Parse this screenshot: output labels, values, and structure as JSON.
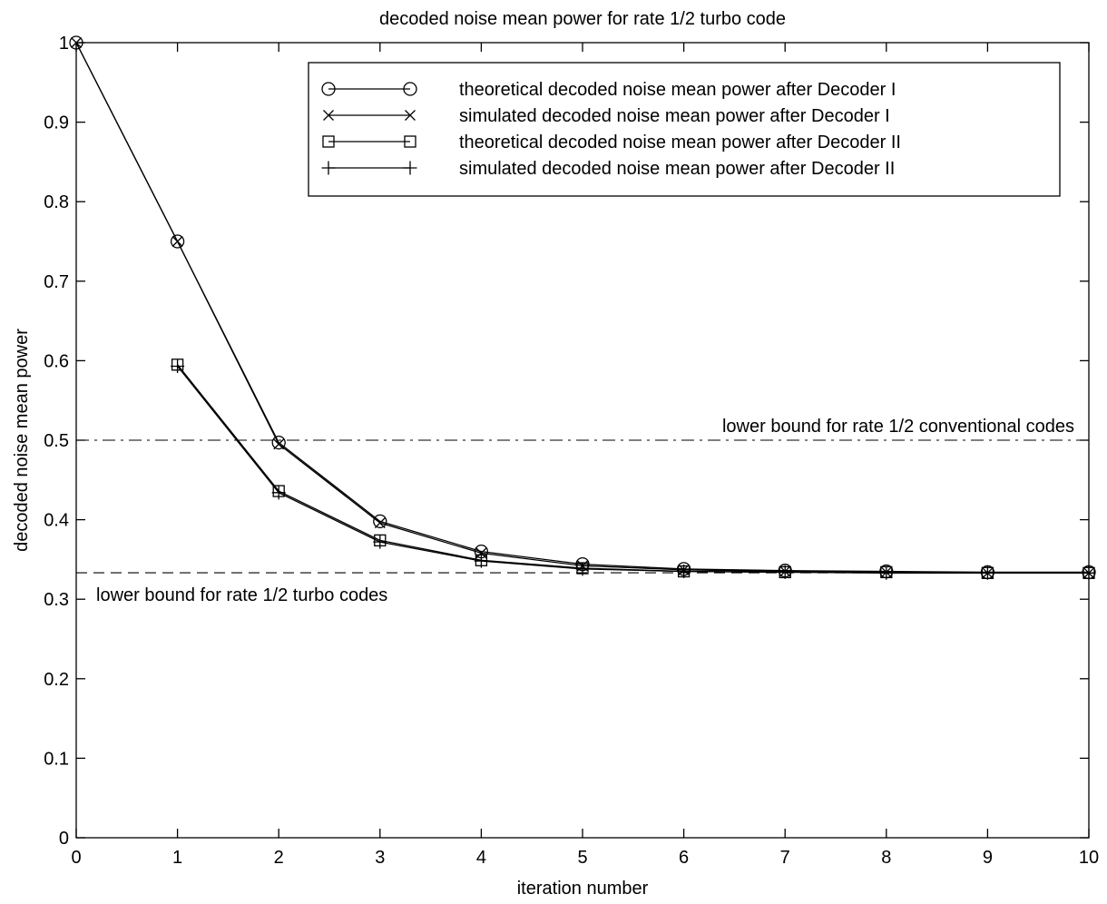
{
  "chart_data": {
    "type": "line",
    "title": "decoded noise mean power for rate 1/2 turbo code",
    "xlabel": "iteration number",
    "ylabel": "decoded noise mean power",
    "xlim": [
      0,
      10
    ],
    "ylim": [
      0,
      1
    ],
    "xticks": [
      0,
      1,
      2,
      3,
      4,
      5,
      6,
      7,
      8,
      9,
      10
    ],
    "yticks": [
      0,
      0.1,
      0.2,
      0.3,
      0.4,
      0.5,
      0.6,
      0.7,
      0.8,
      0.9,
      1
    ],
    "grid": false,
    "legend_position": "top-right",
    "series": [
      {
        "name": "theoretical decoded noise mean power after Decoder I",
        "marker": "circle",
        "x": [
          0,
          1,
          2,
          3,
          4,
          5,
          6,
          7,
          8,
          9,
          10
        ],
        "y": [
          1.0,
          0.75,
          0.497,
          0.398,
          0.36,
          0.344,
          0.338,
          0.336,
          0.335,
          0.334,
          0.334
        ]
      },
      {
        "name": "simulated decoded noise mean power after Decoder I",
        "marker": "x",
        "x": [
          0,
          1,
          2,
          3,
          4,
          5,
          6,
          7,
          8,
          9,
          10
        ],
        "y": [
          1.0,
          0.75,
          0.495,
          0.396,
          0.358,
          0.342,
          0.337,
          0.335,
          0.334,
          0.333,
          0.333
        ]
      },
      {
        "name": "theoretical decoded noise mean power after Decoder II",
        "marker": "square",
        "x": [
          1,
          2,
          3,
          4,
          5,
          6,
          7,
          8,
          9,
          10
        ],
        "y": [
          0.595,
          0.436,
          0.374,
          0.349,
          0.339,
          0.335,
          0.334,
          0.334,
          0.333,
          0.333
        ]
      },
      {
        "name": "simulated decoded noise mean power after Decoder II",
        "marker": "plus",
        "x": [
          1,
          2,
          3,
          4,
          5,
          6,
          7,
          8,
          9,
          10
        ],
        "y": [
          0.593,
          0.434,
          0.372,
          0.348,
          0.338,
          0.335,
          0.334,
          0.333,
          0.333,
          0.333
        ]
      }
    ],
    "reference_lines": [
      {
        "label": "lower bound for rate 1/2 conventional codes",
        "y": 0.5,
        "style": "dash-dot"
      },
      {
        "label": "lower bound for rate 1/2 turbo codes",
        "y": 0.3333,
        "style": "dashed"
      }
    ]
  }
}
